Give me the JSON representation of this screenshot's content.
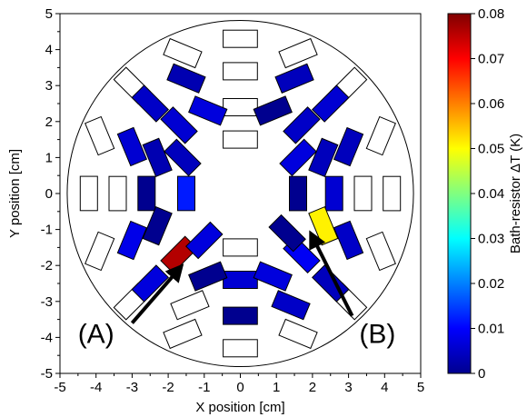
{
  "chart_data": {
    "type": "scatter",
    "xlabel": "X position [cm]",
    "ylabel": "Y position [cm]",
    "xlim": [
      -5,
      5
    ],
    "ylim": [
      -5,
      5
    ],
    "x_ticks": [
      "-5",
      "-4",
      "-3",
      "-2",
      "-1",
      "0",
      "1",
      "2",
      "3",
      "4",
      "5"
    ],
    "y_ticks": [
      "-5",
      "-4",
      "-3",
      "-2",
      "-1",
      "0",
      "1",
      "2",
      "3",
      "4",
      "5"
    ],
    "grid": false,
    "circle": {
      "center": [
        0,
        0
      ],
      "radius": 4.8
    },
    "colorbar": {
      "label": "Bath-resistor ΔT (K)",
      "range": [
        0,
        0.08
      ],
      "ticks": [
        "0",
        "0.01",
        "0.02",
        "0.03",
        "0.04",
        "0.05",
        "0.06",
        "0.07",
        "0.08"
      ],
      "colors": [
        "#00008f",
        "#0000ff",
        "#0080ff",
        "#00ffff",
        "#80ff80",
        "#ffff00",
        "#ff8000",
        "#ff0000",
        "#800000"
      ]
    },
    "resistors": [
      {
        "x": 0,
        "y": 4.3,
        "angle": 0,
        "value": null
      },
      {
        "x": 0,
        "y": 3.4,
        "angle": 0,
        "value": null
      },
      {
        "x": 0,
        "y": 2.4,
        "angle": 0,
        "value": null
      },
      {
        "x": 0,
        "y": 1.5,
        "angle": 0,
        "value": null
      },
      {
        "x": 0,
        "y": -1.5,
        "angle": 0,
        "value": null
      },
      {
        "x": 0,
        "y": -2.4,
        "angle": 0,
        "value": 0.006
      },
      {
        "x": 0,
        "y": -3.4,
        "angle": 0,
        "value": 0
      },
      {
        "x": 0,
        "y": -4.3,
        "angle": 0,
        "value": null
      },
      {
        "x": 1.6,
        "y": 3.9,
        "angle": -22.5,
        "value": null
      },
      {
        "x": -1.6,
        "y": 3.9,
        "angle": 22.5,
        "value": null
      },
      {
        "x": 3.0,
        "y": 3.0,
        "angle": -45,
        "value": null
      },
      {
        "x": -3.0,
        "y": 3.0,
        "angle": 45,
        "value": null
      },
      {
        "x": 3.9,
        "y": 1.6,
        "angle": -67.5,
        "value": null
      },
      {
        "x": -3.9,
        "y": 1.6,
        "angle": 67.5,
        "value": null
      },
      {
        "x": 4.2,
        "y": 0,
        "angle": 90,
        "value": null
      },
      {
        "x": -4.2,
        "y": 0,
        "angle": 90,
        "value": null
      },
      {
        "x": 3.9,
        "y": -1.6,
        "angle": 67.5,
        "value": null
      },
      {
        "x": -3.9,
        "y": -1.6,
        "angle": -67.5,
        "value": null
      },
      {
        "x": 3.0,
        "y": -3.0,
        "angle": 45,
        "value": null
      },
      {
        "x": -3.0,
        "y": -3.0,
        "angle": -45,
        "value": null
      },
      {
        "x": 1.6,
        "y": -3.9,
        "angle": 22.5,
        "value": null
      },
      {
        "x": -1.6,
        "y": -3.9,
        "angle": -22.5,
        "value": null
      },
      {
        "x": 1.5,
        "y": 3.2,
        "angle": -22.5,
        "value": 0.004
      },
      {
        "x": -1.5,
        "y": 3.2,
        "angle": 22.5,
        "value": 0.003
      },
      {
        "x": 2.5,
        "y": 2.5,
        "angle": -45,
        "value": 0.006
      },
      {
        "x": -2.5,
        "y": 2.5,
        "angle": 45,
        "value": 0.005
      },
      {
        "x": 3.0,
        "y": 1.3,
        "angle": -67.5,
        "value": 0.004
      },
      {
        "x": -3.0,
        "y": 1.3,
        "angle": 67.5,
        "value": 0.006
      },
      {
        "x": 3.4,
        "y": 0,
        "angle": 90,
        "value": null
      },
      {
        "x": -3.4,
        "y": 0,
        "angle": 90,
        "value": null
      },
      {
        "x": 3.0,
        "y": -1.3,
        "angle": 67.5,
        "value": 0.005
      },
      {
        "x": -3.0,
        "y": -1.3,
        "angle": -67.5,
        "value": 0.008
      },
      {
        "x": 2.5,
        "y": -2.5,
        "angle": 45,
        "value": 0.004
      },
      {
        "x": -2.5,
        "y": -2.5,
        "angle": -45,
        "value": 0.007
      },
      {
        "x": 1.4,
        "y": -3.1,
        "angle": 22.5,
        "value": 0.005
      },
      {
        "x": -1.4,
        "y": -3.1,
        "angle": -22.5,
        "value": null
      },
      {
        "x": 0.9,
        "y": 2.3,
        "angle": -22.5,
        "value": 0
      },
      {
        "x": -0.9,
        "y": 2.3,
        "angle": 22.5,
        "value": 0.007
      },
      {
        "x": 1.7,
        "y": 1.9,
        "angle": -45,
        "value": 0.005
      },
      {
        "x": -1.7,
        "y": 1.9,
        "angle": 45,
        "value": 0.006
      },
      {
        "x": 2.3,
        "y": 1.0,
        "angle": -67.5,
        "value": 0.004
      },
      {
        "x": -2.3,
        "y": 1.0,
        "angle": 67.5,
        "value": 0.003
      },
      {
        "x": 2.6,
        "y": 0,
        "angle": 90,
        "value": 0.006
      },
      {
        "x": -2.6,
        "y": 0,
        "angle": 90,
        "value": 0
      },
      {
        "x": 2.3,
        "y": -0.9,
        "angle": 67.5,
        "value": 0.051
      },
      {
        "x": -2.3,
        "y": -0.9,
        "angle": -67.5,
        "value": 0
      },
      {
        "x": 1.7,
        "y": -1.7,
        "angle": 45,
        "value": 0.009
      },
      {
        "x": -1.7,
        "y": -1.7,
        "angle": -45,
        "value": 0.076
      },
      {
        "x": 0.9,
        "y": -2.3,
        "angle": 22.5,
        "value": 0.007
      },
      {
        "x": -0.9,
        "y": -2.3,
        "angle": -22.5,
        "value": 0
      },
      {
        "x": 1.6,
        "y": 1.0,
        "angle": -45,
        "value": 0.007
      },
      {
        "x": -1.6,
        "y": 1.0,
        "angle": 45,
        "value": 0.004
      },
      {
        "x": 1.6,
        "y": 0,
        "angle": 90,
        "value": 0
      },
      {
        "x": -1.5,
        "y": 0,
        "angle": 90,
        "value": 0.012
      },
      {
        "x": 1.3,
        "y": -1.1,
        "angle": 45,
        "value": 0
      },
      {
        "x": -1.0,
        "y": -1.3,
        "angle": -45,
        "value": 0.007
      }
    ],
    "annotations": [
      {
        "label": "(A)",
        "text_pos": [
          -4.0,
          -4.15
        ],
        "tail": [
          -3.0,
          -3.6
        ],
        "head": [
          -1.7,
          -2.1
        ]
      },
      {
        "label": "(B)",
        "text_pos": [
          3.8,
          -4.15
        ],
        "tail": [
          3.1,
          -3.4
        ],
        "head": [
          2.0,
          -1.2
        ]
      }
    ]
  }
}
